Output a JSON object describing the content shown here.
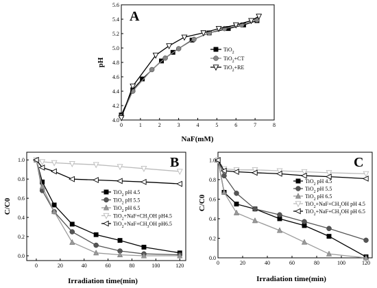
{
  "chart_data": [
    {
      "type": "line",
      "panel": "A",
      "xlabel": "NaF(mM)",
      "ylabel": "pH",
      "xlim": [
        0,
        8
      ],
      "ylim": [
        4.0,
        5.6
      ],
      "xticks": [
        0,
        1,
        2,
        3,
        4,
        5,
        6,
        7,
        8
      ],
      "yticks": [
        4.0,
        4.2,
        4.4,
        4.6,
        4.8,
        5.0,
        5.2,
        5.4,
        5.6
      ],
      "ytick_decimals": 1,
      "legend_position": "middle-right",
      "series": [
        {
          "name": "TiO2",
          "marker": "square",
          "color": "#000000",
          "x": [
            0,
            0.6,
            1.1,
            2.1,
            2.7,
            3.7,
            4.6,
            5.6,
            6.4,
            7.1
          ],
          "y": [
            4.07,
            4.42,
            4.57,
            4.82,
            4.94,
            5.11,
            5.21,
            5.27,
            5.32,
            5.38
          ]
        },
        {
          "name": "TiO2+CT",
          "marker": "circle",
          "color": "#888888",
          "x": [
            0,
            0.6,
            1.6,
            2.3,
            3.0,
            3.8,
            4.6,
            5.4,
            6.3,
            7.1
          ],
          "y": [
            4.05,
            4.4,
            4.7,
            4.86,
            4.99,
            5.12,
            5.21,
            5.27,
            5.32,
            5.39
          ]
        },
        {
          "name": "TiO2+RE",
          "marker": "triangle-down",
          "color": "#000000",
          "x": [
            0,
            0.6,
            1.8,
            2.5,
            3.3,
            4.3,
            5.1,
            6.0,
            6.8,
            7.2
          ],
          "y": [
            4.03,
            4.47,
            4.9,
            5.03,
            5.15,
            5.21,
            5.27,
            5.32,
            5.38,
            5.44
          ]
        }
      ]
    },
    {
      "type": "line",
      "panel": "B",
      "xlabel": "Irradiation time(min)",
      "ylabel": "C/C0",
      "xlim": [
        -8,
        125
      ],
      "ylim": [
        -0.05,
        1.08
      ],
      "xticks": [
        0,
        20,
        40,
        60,
        80,
        100,
        120
      ],
      "yticks": [
        0.0,
        0.2,
        0.4,
        0.6,
        0.8,
        1.0
      ],
      "ytick_decimals": 1,
      "legend_position": "right",
      "series": [
        {
          "name": "TiO2 pH 4.5",
          "marker": "square",
          "color": "#000000",
          "x": [
            0,
            5,
            15,
            30,
            50,
            70,
            90,
            120
          ],
          "y": [
            1.0,
            0.77,
            0.53,
            0.33,
            0.22,
            0.16,
            0.09,
            0.03
          ]
        },
        {
          "name": "TiO2 pH 5.5",
          "marker": "circle",
          "color": "#555555",
          "x": [
            0,
            5,
            15,
            30,
            50,
            70,
            90,
            120
          ],
          "y": [
            1.0,
            0.68,
            0.46,
            0.25,
            0.11,
            0.05,
            0.02,
            0.01
          ]
        },
        {
          "name": "TiO2 pH 6.5",
          "marker": "triangle-up",
          "color": "#999999",
          "x": [
            0,
            5,
            15,
            30,
            50,
            70,
            90,
            120
          ],
          "y": [
            1.0,
            0.72,
            0.46,
            0.14,
            0.03,
            0.01,
            0.0,
            0.0
          ]
        },
        {
          "name": "TiO2+NaF+CH3OH pH4.5",
          "marker": "triangle-down",
          "color": "#bbbbbb",
          "x": [
            0,
            5,
            15,
            30,
            50,
            70,
            90,
            120
          ],
          "y": [
            1.0,
            0.98,
            0.97,
            0.96,
            0.95,
            0.93,
            0.91,
            0.88
          ]
        },
        {
          "name": "TiO2+NaF+CH3OH pH6.5",
          "marker": "triangle-left",
          "color": "#000000",
          "x": [
            0,
            5,
            15,
            30,
            50,
            70,
            90,
            120
          ],
          "y": [
            1.0,
            0.92,
            0.88,
            0.8,
            0.79,
            0.78,
            0.77,
            0.75
          ]
        }
      ]
    },
    {
      "type": "line",
      "panel": "C",
      "xlabel": "Irradiation time(min)",
      "ylabel": "C/C0",
      "xlim": [
        0,
        125
      ],
      "ylim": [
        0,
        1.08
      ],
      "xticks": [
        0,
        20,
        40,
        60,
        80,
        100,
        120
      ],
      "yticks": [
        0.0,
        0.2,
        0.4,
        0.6,
        0.8,
        1.0
      ],
      "ytick_decimals": 1,
      "legend_position": "right",
      "series": [
        {
          "name": "TiO2 pH 4.5",
          "marker": "square",
          "color": "#000000",
          "x": [
            0,
            5,
            15,
            30,
            50,
            70,
            90,
            120
          ],
          "y": [
            1.0,
            0.67,
            0.55,
            0.5,
            0.4,
            0.33,
            0.22,
            0.01
          ]
        },
        {
          "name": "TiO2 pH 5.5",
          "marker": "circle",
          "color": "#555555",
          "x": [
            0,
            5,
            15,
            30,
            50,
            70,
            90,
            120
          ],
          "y": [
            1.0,
            0.84,
            0.66,
            0.5,
            0.44,
            0.37,
            0.3,
            0.18
          ]
        },
        {
          "name": "TiO2 pH 6.5",
          "marker": "triangle-up",
          "color": "#999999",
          "x": [
            0,
            5,
            15,
            30,
            50,
            70,
            90,
            120
          ],
          "y": [
            1.0,
            0.67,
            0.46,
            0.38,
            0.28,
            0.16,
            0.04,
            0.0
          ]
        },
        {
          "name": "TiO2+NaF+CH3OH pH 4.5",
          "marker": "triangle-down",
          "color": "#bbbbbb",
          "x": [
            0,
            5,
            15,
            30,
            50,
            70,
            90,
            120
          ],
          "y": [
            1.0,
            0.91,
            0.9,
            0.9,
            0.89,
            0.88,
            0.87,
            0.86
          ]
        },
        {
          "name": "TiO2+NaF+CH3OH pH 6.5",
          "marker": "triangle-left",
          "color": "#000000",
          "x": [
            0,
            5,
            15,
            30,
            50,
            70,
            90,
            120
          ],
          "y": [
            1.0,
            0.89,
            0.88,
            0.87,
            0.86,
            0.84,
            0.83,
            0.81
          ]
        }
      ]
    }
  ]
}
